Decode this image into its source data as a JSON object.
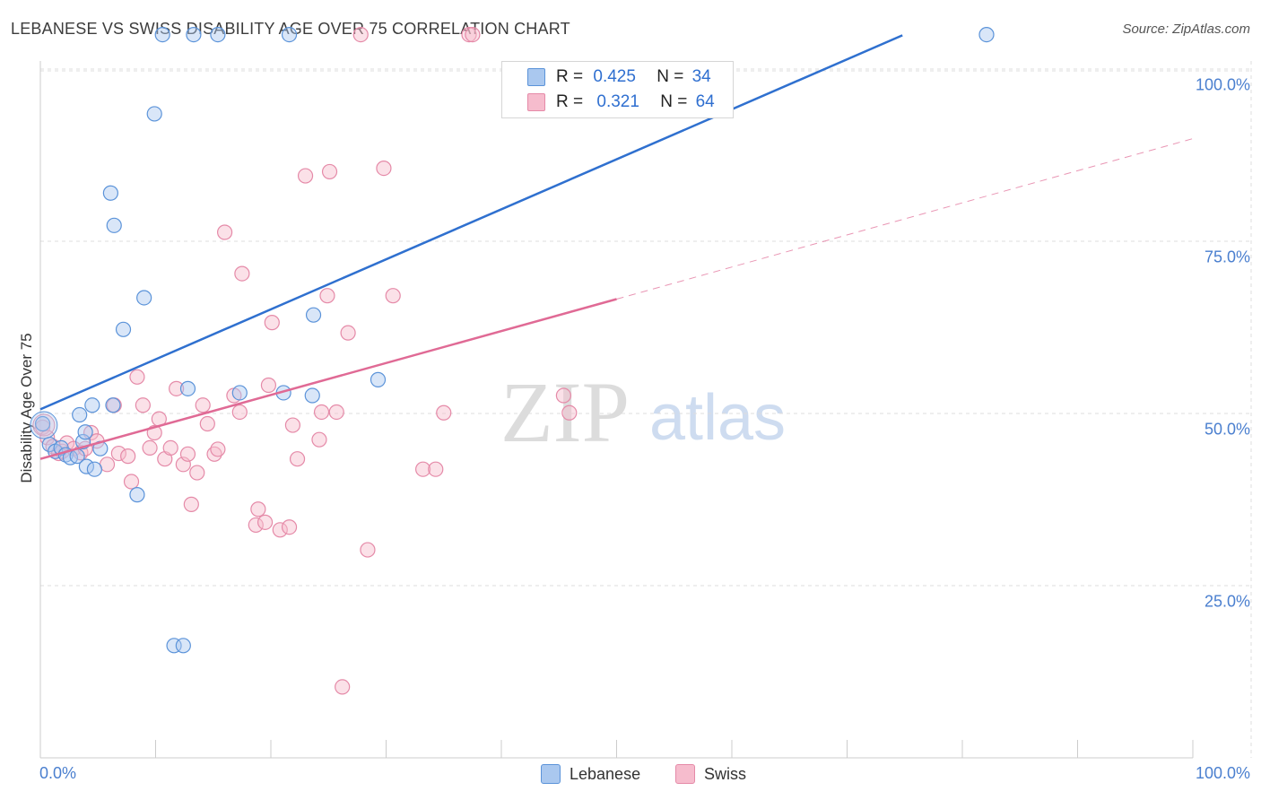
{
  "title": "LEBANESE VS SWISS DISABILITY AGE OVER 75 CORRELATION CHART",
  "source": "Source: ZipAtlas.com",
  "watermark": {
    "zip": "ZIP",
    "atlas": "atlas"
  },
  "stats": {
    "row1": {
      "r_label": "R =",
      "r_value": "0.425",
      "n_label": "N =",
      "n_value": "34"
    },
    "row2": {
      "r_label": "R =",
      "r_value": "0.321",
      "n_label": "N =",
      "n_value": "64"
    }
  },
  "legend": {
    "lebanese": "Lebanese",
    "swiss": "Swiss"
  },
  "colors": {
    "lebanese_fill": "#aac8ef",
    "lebanese_stroke": "#5b93d9",
    "lebanese_line": "#2f70cf",
    "swiss_fill": "#f6bccd",
    "swiss_stroke": "#e58aa8",
    "swiss_line": "#e06a95",
    "axis_text": "#4a7fcf",
    "grid": "#dddddd"
  },
  "chart_data": {
    "type": "scatter",
    "title": "LEBANESE VS SWISS DISABILITY AGE OVER 75 CORRELATION CHART",
    "xlabel": "",
    "ylabel": "Disability Age Over 75",
    "xlim": [
      0,
      100
    ],
    "ylim": [
      0,
      105
    ],
    "y_ticks": [
      25,
      50,
      75,
      100
    ],
    "y_tick_labels": [
      "25.0%",
      "50.0%",
      "75.0%",
      "100.0%"
    ],
    "x_tick_labels": [
      "0.0%",
      "100.0%"
    ],
    "grid": true,
    "series": [
      {
        "name": "Lebanese",
        "R": 0.425,
        "N": 34,
        "trend": {
          "x0": 0,
          "y0": 50.6,
          "x1": 74.8,
          "y1": 104.9,
          "dashed_extension": false
        },
        "points": [
          [
            0.2,
            48.5
          ],
          [
            0.8,
            45.5
          ],
          [
            1.3,
            44.5
          ],
          [
            1.8,
            45.0
          ],
          [
            2.2,
            44.0
          ],
          [
            2.6,
            43.6
          ],
          [
            3.2,
            43.8
          ],
          [
            3.4,
            49.8
          ],
          [
            3.7,
            45.9
          ],
          [
            3.9,
            47.3
          ],
          [
            4.0,
            42.3
          ],
          [
            4.5,
            51.2
          ],
          [
            4.7,
            41.9
          ],
          [
            5.2,
            44.9
          ],
          [
            6.3,
            51.2
          ],
          [
            8.4,
            38.2
          ],
          [
            6.1,
            82.0
          ],
          [
            6.4,
            77.3
          ],
          [
            7.2,
            62.2
          ],
          [
            9.0,
            66.8
          ],
          [
            9.9,
            93.5
          ],
          [
            10.6,
            105.0
          ],
          [
            13.3,
            105.0
          ],
          [
            15.4,
            105.0
          ],
          [
            21.6,
            105.0
          ],
          [
            12.8,
            53.6
          ],
          [
            17.3,
            53.0
          ],
          [
            21.1,
            53.0
          ],
          [
            23.7,
            64.3
          ],
          [
            23.6,
            52.6
          ],
          [
            29.3,
            54.9
          ],
          [
            11.6,
            16.3
          ],
          [
            12.4,
            16.3
          ],
          [
            82.1,
            105.0
          ]
        ]
      },
      {
        "name": "Swiss",
        "R": 0.321,
        "N": 64,
        "trend": {
          "x0": 0,
          "y0": 43.4,
          "x1": 50,
          "y1": 66.6,
          "dashed_to_x": 100,
          "dashed_to_y": 89.9
        },
        "points": [
          [
            0.2,
            48.0
          ],
          [
            0.6,
            46.5
          ],
          [
            1.1,
            45.2
          ],
          [
            1.6,
            44.2
          ],
          [
            1.9,
            44.5
          ],
          [
            2.3,
            45.7
          ],
          [
            2.9,
            44.9
          ],
          [
            3.5,
            44.3
          ],
          [
            3.9,
            44.9
          ],
          [
            4.4,
            47.2
          ],
          [
            4.9,
            46.0
          ],
          [
            5.8,
            42.6
          ],
          [
            6.4,
            51.2
          ],
          [
            6.8,
            44.2
          ],
          [
            7.6,
            43.8
          ],
          [
            7.9,
            40.1
          ],
          [
            8.4,
            55.3
          ],
          [
            8.9,
            51.2
          ],
          [
            9.5,
            45.0
          ],
          [
            9.9,
            47.2
          ],
          [
            10.3,
            49.2
          ],
          [
            10.8,
            43.4
          ],
          [
            11.3,
            45.0
          ],
          [
            11.8,
            53.6
          ],
          [
            12.4,
            42.6
          ],
          [
            12.8,
            44.1
          ],
          [
            13.1,
            36.8
          ],
          [
            13.6,
            41.4
          ],
          [
            14.1,
            51.2
          ],
          [
            14.5,
            48.5
          ],
          [
            15.1,
            44.1
          ],
          [
            15.4,
            44.8
          ],
          [
            16.0,
            76.3
          ],
          [
            16.8,
            52.6
          ],
          [
            17.3,
            50.2
          ],
          [
            17.5,
            70.3
          ],
          [
            18.7,
            33.8
          ],
          [
            18.9,
            36.1
          ],
          [
            19.5,
            34.2
          ],
          [
            19.8,
            54.1
          ],
          [
            20.1,
            63.2
          ],
          [
            20.8,
            33.1
          ],
          [
            21.6,
            33.5
          ],
          [
            21.9,
            48.3
          ],
          [
            22.3,
            43.4
          ],
          [
            23.0,
            84.5
          ],
          [
            24.2,
            46.2
          ],
          [
            24.4,
            50.2
          ],
          [
            24.9,
            67.1
          ],
          [
            25.1,
            85.1
          ],
          [
            25.7,
            50.2
          ],
          [
            26.7,
            61.7
          ],
          [
            27.8,
            105.0
          ],
          [
            26.2,
            10.3
          ],
          [
            28.4,
            30.2
          ],
          [
            29.8,
            85.6
          ],
          [
            30.6,
            67.1
          ],
          [
            33.2,
            41.9
          ],
          [
            34.3,
            41.9
          ],
          [
            35.0,
            50.1
          ],
          [
            37.2,
            105.0
          ],
          [
            37.5,
            105.0
          ],
          [
            45.4,
            52.6
          ],
          [
            45.9,
            50.1
          ]
        ]
      }
    ]
  }
}
